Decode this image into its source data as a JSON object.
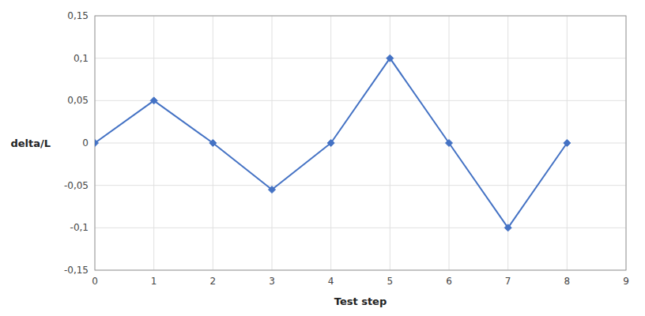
{
  "chart_data": {
    "type": "line",
    "x": [
      0,
      1,
      2,
      3,
      4,
      5,
      6,
      7,
      8
    ],
    "values": [
      0.0,
      0.05,
      0.0,
      -0.055,
      0.0,
      0.1,
      0.0,
      -0.1,
      0.0
    ],
    "color": "#4472C4",
    "marker": "diamond",
    "xlabel": "Test step",
    "ylabel": "delta/L",
    "xlim": [
      0,
      9
    ],
    "ylim": [
      -0.15,
      0.15
    ],
    "xticks": [
      0,
      1,
      2,
      3,
      4,
      5,
      6,
      7,
      8,
      9
    ],
    "yticks": [
      {
        "value": -0.15,
        "label": "-0,15"
      },
      {
        "value": -0.1,
        "label": "-0,1"
      },
      {
        "value": -0.05,
        "label": "-0,05"
      },
      0,
      {
        "value": 0.05,
        "label": "0,05"
      },
      {
        "value": 0.1,
        "label": "0,1"
      },
      {
        "value": 0.15,
        "label": "0,15"
      }
    ],
    "grid": true
  }
}
